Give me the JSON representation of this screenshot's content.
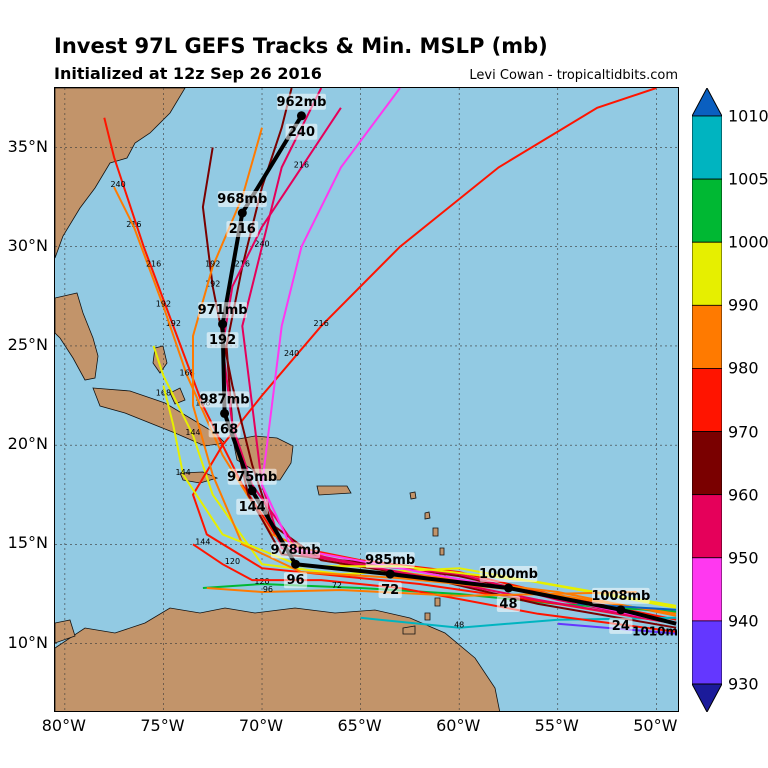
{
  "header": {
    "title": "Invest 97L GEFS Tracks & Min. MSLP (mb)",
    "subtitle": "Initialized at 12z Sep 26 2016",
    "credit": "Levi Cowan - tropicaltidbits.com"
  },
  "axes": {
    "lat_labels": [
      "35°N",
      "30°N",
      "25°N",
      "20°N",
      "15°N",
      "10°N"
    ],
    "lat_values": [
      35,
      30,
      25,
      20,
      15,
      10
    ],
    "lon_labels": [
      "80°W",
      "75°W",
      "70°W",
      "65°W",
      "60°W",
      "55°W",
      "50°W"
    ],
    "lon_values": [
      -80,
      -75,
      -70,
      -65,
      -60,
      -55,
      -50
    ],
    "lat_range": [
      6.5,
      38
    ],
    "lon_range": [
      -80.5,
      -48.8
    ]
  },
  "colorbar": {
    "labels": [
      "1010",
      "1005",
      "1000",
      "990",
      "980",
      "970",
      "960",
      "950",
      "940",
      "930"
    ],
    "colors": [
      "#0a5fc0",
      "#00b4c0",
      "#00b833",
      "#e6ef00",
      "#ff7a00",
      "#ff1400",
      "#7a0000",
      "#e5005a",
      "#ff38f0",
      "#6437ff",
      "#1b1b9a"
    ]
  },
  "mean_track": {
    "points": [
      {
        "lon": -49.0,
        "lat": 11.0
      },
      {
        "lon": -51.8,
        "lat": 11.7,
        "hour": "24",
        "pressure": "1008mb"
      },
      {
        "lon": -57.5,
        "lat": 12.8,
        "hour": "48",
        "pressure": "1000mb"
      },
      {
        "lon": -63.5,
        "lat": 13.5,
        "hour": "72",
        "pressure": "985mb"
      },
      {
        "lon": -68.3,
        "lat": 14.0,
        "hour": "96",
        "pressure": "978mb"
      },
      {
        "lon": -70.5,
        "lat": 17.7,
        "hour": "144",
        "pressure": "975mb"
      },
      {
        "lon": -71.9,
        "lat": 21.6,
        "hour": "168",
        "pressure": "987mb"
      },
      {
        "lon": -72.0,
        "lat": 26.1,
        "hour": "192",
        "pressure": "971mb"
      },
      {
        "lon": -71.0,
        "lat": 31.7,
        "hour": "216",
        "pressure": "968mb"
      },
      {
        "lon": -68.0,
        "lat": 36.6,
        "hour": "240",
        "pressure": "962mb"
      }
    ]
  },
  "extra_label": "1010m",
  "member_tracks": [
    {
      "color": "#ff1400",
      "pts": [
        [
          -49,
          11.2
        ],
        [
          -55,
          12.4
        ],
        [
          -60,
          13.6
        ],
        [
          -65,
          14.2
        ],
        [
          -69,
          15.0
        ],
        [
          -71,
          18
        ],
        [
          -73,
          22
        ],
        [
          -74.5,
          26
        ],
        [
          -76,
          30
        ],
        [
          -77.5,
          34.5
        ],
        [
          -78,
          36.5
        ]
      ],
      "labels": [
        [
          -73,
          22,
          "168"
        ],
        [
          -74.5,
          26,
          "192"
        ],
        [
          -76.5,
          31,
          "216"
        ],
        [
          -77.3,
          33,
          "240"
        ]
      ]
    },
    {
      "color": "#ff7a00",
      "pts": [
        [
          -49,
          11.4
        ],
        [
          -55,
          12.6
        ],
        [
          -60,
          13.2
        ],
        [
          -66,
          14.0
        ],
        [
          -69.5,
          15.5
        ],
        [
          -72,
          19.5
        ],
        [
          -73.8,
          23.5
        ],
        [
          -75,
          27
        ],
        [
          -76.5,
          31
        ],
        [
          -77.5,
          33
        ]
      ],
      "labels": [
        [
          -73.8,
          23.5,
          "168"
        ],
        [
          -75,
          27,
          "192"
        ],
        [
          -75.5,
          29,
          "216"
        ]
      ]
    },
    {
      "color": "#7a0000",
      "pts": [
        [
          -49,
          11.0
        ],
        [
          -55,
          12.3
        ],
        [
          -60,
          13.4
        ],
        [
          -65,
          14.1
        ],
        [
          -69,
          14.5
        ],
        [
          -70.7,
          17.5
        ],
        [
          -71.5,
          21
        ],
        [
          -71.8,
          25
        ],
        [
          -71,
          29
        ],
        [
          -70,
          33
        ],
        [
          -69,
          36
        ],
        [
          -68.5,
          38
        ]
      ],
      "labels": [
        [
          -71,
          29,
          "216"
        ]
      ]
    },
    {
      "color": "#e5005a",
      "pts": [
        [
          -49,
          11.0
        ],
        [
          -55,
          12.2
        ],
        [
          -60,
          13.5
        ],
        [
          -65,
          14.0
        ],
        [
          -69,
          14.8
        ],
        [
          -70,
          18
        ],
        [
          -70.5,
          22
        ],
        [
          -71,
          26
        ],
        [
          -70,
          30
        ],
        [
          -69,
          34
        ],
        [
          -67,
          38
        ]
      ],
      "labels": [
        [
          -70,
          30,
          "240"
        ]
      ]
    },
    {
      "color": "#e6ef00",
      "pts": [
        [
          -49,
          11.8
        ],
        [
          -55,
          12.9
        ],
        [
          -60,
          13.8
        ],
        [
          -66,
          13.5
        ],
        [
          -70,
          14.0
        ],
        [
          -72.5,
          17.5
        ],
        [
          -73.5,
          20.5
        ],
        [
          -75,
          23.5
        ],
        [
          -75.5,
          25
        ]
      ],
      "labels": [
        [
          -73.5,
          20.5,
          "144"
        ],
        [
          -75,
          22.5,
          "168"
        ]
      ]
    },
    {
      "color": "#00b833",
      "pts": [
        [
          -49,
          11.6
        ],
        [
          -55,
          12.0
        ],
        [
          -60,
          12.5
        ],
        [
          -65,
          12.8
        ],
        [
          -70,
          13.0
        ],
        [
          -73,
          12.8
        ]
      ],
      "labels": [
        [
          -70,
          13,
          "120"
        ]
      ]
    },
    {
      "color": "#00b4c0",
      "pts": [
        [
          -49,
          11.3
        ],
        [
          -55,
          11.2
        ],
        [
          -60,
          10.8
        ],
        [
          -65,
          11.3
        ]
      ],
      "labels": [
        [
          -60,
          10.8,
          "48"
        ]
      ]
    },
    {
      "color": "#ff1400",
      "pts": [
        [
          -49,
          11.0
        ],
        [
          -55,
          12.0
        ],
        [
          -62,
          13.0
        ],
        [
          -67,
          13.5
        ],
        [
          -70,
          13.8
        ],
        [
          -72.8,
          15.5
        ],
        [
          -73.5,
          17.5
        ],
        [
          -72,
          20
        ],
        [
          -70,
          22.5
        ],
        [
          -67,
          26
        ],
        [
          -63,
          30
        ],
        [
          -58,
          34
        ],
        [
          -53,
          37
        ],
        [
          -50,
          38
        ]
      ],
      "labels": [
        [
          -67,
          26,
          "216"
        ],
        [
          -68.5,
          24.5,
          "240"
        ]
      ]
    },
    {
      "color": "#7a0000",
      "pts": [
        [
          -49,
          10.8
        ],
        [
          -56,
          12.0
        ],
        [
          -62,
          13.4
        ],
        [
          -67,
          14.2
        ],
        [
          -69.5,
          16
        ],
        [
          -70.5,
          19
        ],
        [
          -71.5,
          23
        ],
        [
          -72.5,
          28
        ],
        [
          -73,
          32
        ],
        [
          -72.5,
          35
        ]
      ],
      "labels": [
        [
          -72.5,
          28,
          "192"
        ]
      ]
    },
    {
      "color": "#e5005a",
      "pts": [
        [
          -49,
          11.0
        ],
        [
          -56,
          12.2
        ],
        [
          -63,
          13.6
        ],
        [
          -68,
          14.5
        ],
        [
          -70.5,
          18
        ],
        [
          -71.5,
          21
        ],
        [
          -72,
          25
        ],
        [
          -71.5,
          28
        ],
        [
          -70,
          31
        ],
        [
          -68,
          34
        ],
        [
          -66,
          37
        ]
      ],
      "labels": [
        [
          -68,
          34,
          "216"
        ]
      ]
    },
    {
      "color": "#ff7a00",
      "pts": [
        [
          -49,
          11.5
        ],
        [
          -56,
          12.6
        ],
        [
          -63,
          13.3
        ],
        [
          -68,
          13.6
        ],
        [
          -71,
          15
        ],
        [
          -72.5,
          18.5
        ],
        [
          -73.5,
          22
        ],
        [
          -73.5,
          25.5
        ],
        [
          -72.5,
          29
        ],
        [
          -71,
          32.5
        ],
        [
          -70,
          36
        ]
      ],
      "labels": [
        [
          -72.5,
          29,
          "192"
        ]
      ]
    },
    {
      "color": "#ff38f0",
      "pts": [
        [
          -49,
          11.0
        ],
        [
          -56,
          12.5
        ],
        [
          -63,
          13.8
        ],
        [
          -68.5,
          14.8
        ],
        [
          -70,
          18
        ],
        [
          -69.5,
          22
        ],
        [
          -69,
          26
        ],
        [
          -68,
          30
        ],
        [
          -66,
          34
        ],
        [
          -63,
          38
        ]
      ],
      "labels": []
    },
    {
      "color": "#e6ef00",
      "pts": [
        [
          -49,
          11.9
        ],
        [
          -56,
          13.1
        ],
        [
          -63,
          13.9
        ],
        [
          -68,
          13.9
        ],
        [
          -72,
          15.5
        ],
        [
          -74,
          18.5
        ],
        [
          -74.5,
          21
        ],
        [
          -75,
          23
        ]
      ],
      "labels": [
        [
          -74,
          18.5,
          "144"
        ]
      ]
    },
    {
      "color": "#6437ff",
      "pts": [
        [
          -49,
          10.5
        ],
        [
          -55,
          11.0
        ]
      ],
      "labels": []
    },
    {
      "color": "#0a5fc0",
      "pts": [
        [
          -49,
          11.7
        ],
        [
          -54,
          12.0
        ]
      ],
      "labels": []
    },
    {
      "color": "#ff1400",
      "pts": [
        [
          -49,
          10.6
        ],
        [
          -56,
          11.5
        ],
        [
          -63,
          12.8
        ],
        [
          -67,
          13.2
        ],
        [
          -70.5,
          13.2
        ],
        [
          -72,
          14
        ],
        [
          -73.5,
          15
        ]
      ],
      "labels": [
        [
          -73,
          15,
          "144"
        ],
        [
          -71.5,
          14,
          "120"
        ]
      ]
    },
    {
      "color": "#ff7a00",
      "pts": [
        [
          -51,
          12.6
        ],
        [
          -60,
          12.4
        ],
        [
          -66,
          12.7
        ],
        [
          -70,
          12.6
        ],
        [
          -72.8,
          12.8
        ]
      ],
      "labels": [
        [
          -69.7,
          12.6,
          "96"
        ],
        [
          -66.2,
          12.8,
          "72"
        ]
      ]
    }
  ]
}
